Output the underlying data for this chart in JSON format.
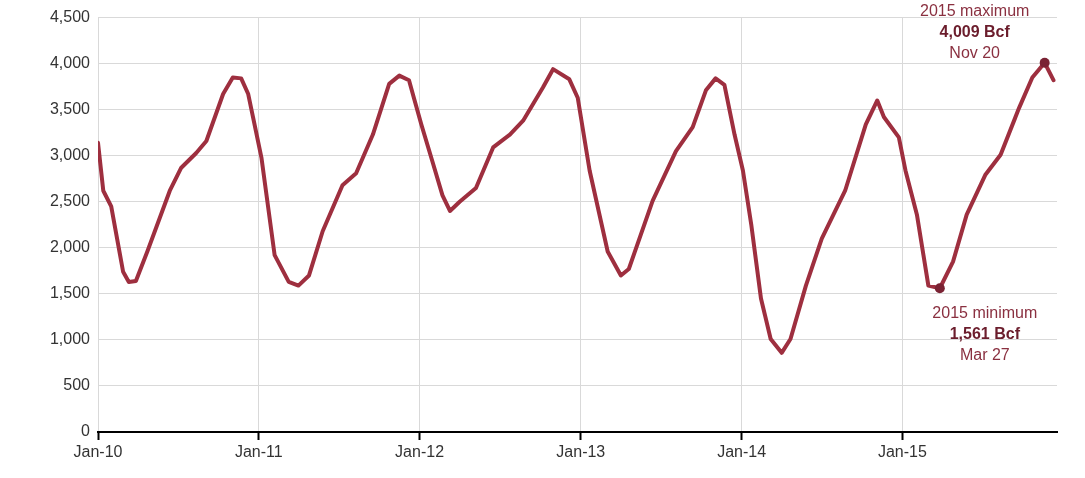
{
  "chart_data": {
    "type": "line",
    "x": [
      "2010-01-01",
      "2010-01-13",
      "2010-01-31",
      "2010-02-27",
      "2010-03-12",
      "2010-03-28",
      "2010-04-23",
      "2010-06-13",
      "2010-07-09",
      "2010-08-12",
      "2010-09-04",
      "2010-10-12",
      "2010-11-03",
      "2010-11-22",
      "2010-12-08",
      "2011-01-07",
      "2011-02-06",
      "2011-03-10",
      "2011-04-01",
      "2011-04-25",
      "2011-05-26",
      "2011-07-10",
      "2011-08-10",
      "2011-09-17",
      "2011-10-24",
      "2011-11-16",
      "2011-12-08",
      "2011-12-19",
      "2012-01-05",
      "2012-01-30",
      "2012-02-22",
      "2012-03-10",
      "2012-04-01",
      "2012-05-08",
      "2012-06-16",
      "2012-07-24",
      "2012-08-23",
      "2012-10-07",
      "2012-10-30",
      "2012-12-06",
      "2012-12-25",
      "2013-01-21",
      "2013-03-03",
      "2013-04-02",
      "2013-04-20",
      "2013-06-13",
      "2013-08-05",
      "2013-09-12",
      "2013-10-12",
      "2013-11-03",
      "2013-11-23",
      "2013-12-16",
      "2014-01-04",
      "2014-01-23",
      "2014-02-14",
      "2014-03-08",
      "2014-04-02",
      "2014-04-22",
      "2014-05-27",
      "2014-07-02",
      "2014-08-24",
      "2014-10-10",
      "2014-11-05",
      "2014-11-20",
      "2014-12-24",
      "2015-01-08",
      "2015-02-03",
      "2015-03-01",
      "2015-03-27",
      "2015-04-26",
      "2015-05-27",
      "2015-07-08",
      "2015-08-12",
      "2015-09-23",
      "2015-10-23",
      "2015-11-20",
      "2015-12-10"
    ],
    "series": [
      {
        "color": "#9e2f3f",
        "values": [
          3140,
          2620,
          2450,
          1740,
          1630,
          1640,
          1960,
          2620,
          2870,
          3030,
          3160,
          3670,
          3850,
          3840,
          3670,
          2980,
          1920,
          1630,
          1590,
          1700,
          2180,
          2680,
          2810,
          3230,
          3780,
          3870,
          3820,
          3630,
          3340,
          2940,
          2570,
          2400,
          2500,
          2650,
          3090,
          3230,
          3380,
          3740,
          3940,
          3830,
          3630,
          2840,
          1960,
          1700,
          1770,
          2510,
          3050,
          3310,
          3710,
          3840,
          3770,
          3230,
          2840,
          2250,
          1450,
          1010,
          860,
          1010,
          1590,
          2100,
          2620,
          3340,
          3600,
          3420,
          3200,
          2840,
          2360,
          1590,
          1561,
          1850,
          2360,
          2790,
          3010,
          3520,
          3850,
          4009,
          3820
        ]
      }
    ],
    "xlim": [
      "2010-01-01",
      "2015-12-18"
    ],
    "xticks": [
      {
        "value": "2010-01-01",
        "label": "Jan-10"
      },
      {
        "value": "2011-01-01",
        "label": "Jan-11"
      },
      {
        "value": "2012-01-01",
        "label": "Jan-12"
      },
      {
        "value": "2013-01-01",
        "label": "Jan-13"
      },
      {
        "value": "2014-01-01",
        "label": "Jan-14"
      },
      {
        "value": "2015-01-01",
        "label": "Jan-15"
      }
    ],
    "ylim": [
      0,
      4500
    ],
    "yticks": [
      0,
      500,
      {
        "value": 1000,
        "label": "1,000"
      },
      {
        "value": 1500,
        "label": "1,500"
      },
      {
        "value": 2000,
        "label": "2,000"
      },
      {
        "value": 2500,
        "label": "2,500"
      },
      {
        "value": 3000,
        "label": "3,000"
      },
      {
        "value": 3500,
        "label": "3,500"
      },
      {
        "value": 4000,
        "label": "4,000"
      },
      {
        "value": 4500,
        "label": "4,500"
      }
    ],
    "grid": true,
    "marker": "none",
    "line_style": "solid",
    "legend": false,
    "annotations": [
      {
        "text": "2015 maximum\n4,009 Bcf\nNov 20",
        "x": "2015-11-20",
        "y": 4009
      },
      {
        "text": "2015 minimum\n1,561 Bcf\nMar 27",
        "x": "2015-03-27",
        "y": 1561
      }
    ]
  }
}
